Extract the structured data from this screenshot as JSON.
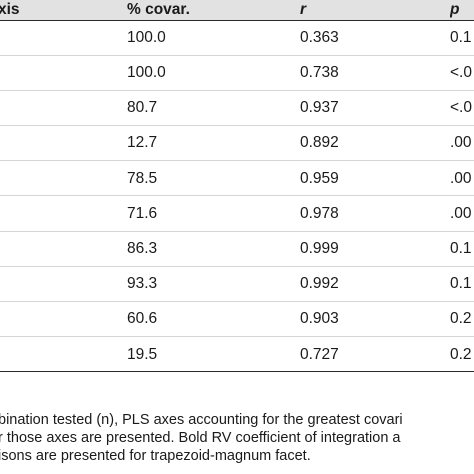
{
  "table": {
    "headers": {
      "axis": "xis",
      "covar": "% covar.",
      "r": "r",
      "p": "p"
    },
    "rows": [
      {
        "covar": "100.0",
        "r": "0.363",
        "p": "0.1"
      },
      {
        "covar": "100.0",
        "r": "0.738",
        "p": "<.0"
      },
      {
        "covar": "80.7",
        "r": "0.937",
        "p": "<.0"
      },
      {
        "covar": "12.7",
        "r": "0.892",
        "p": ".00"
      },
      {
        "covar": "78.5",
        "r": "0.959",
        "p": ".00"
      },
      {
        "covar": "71.6",
        "r": "0.978",
        "p": ".00"
      },
      {
        "covar": "86.3",
        "r": "0.999",
        "p": "0.1"
      },
      {
        "covar": "93.3",
        "r": "0.992",
        "p": "0.1"
      },
      {
        "covar": "60.6",
        "r": "0.903",
        "p": "0.2"
      },
      {
        "covar": "19.5",
        "r": "0.727",
        "p": "0.2"
      }
    ]
  },
  "footnote": {
    "line1": "bination tested (n), PLS axes accounting for the greatest covari",
    "line2": "r those axes are presented. Bold RV coefficient of integration a",
    "line3": "isons are presented for trapezoid-magnum facet."
  }
}
